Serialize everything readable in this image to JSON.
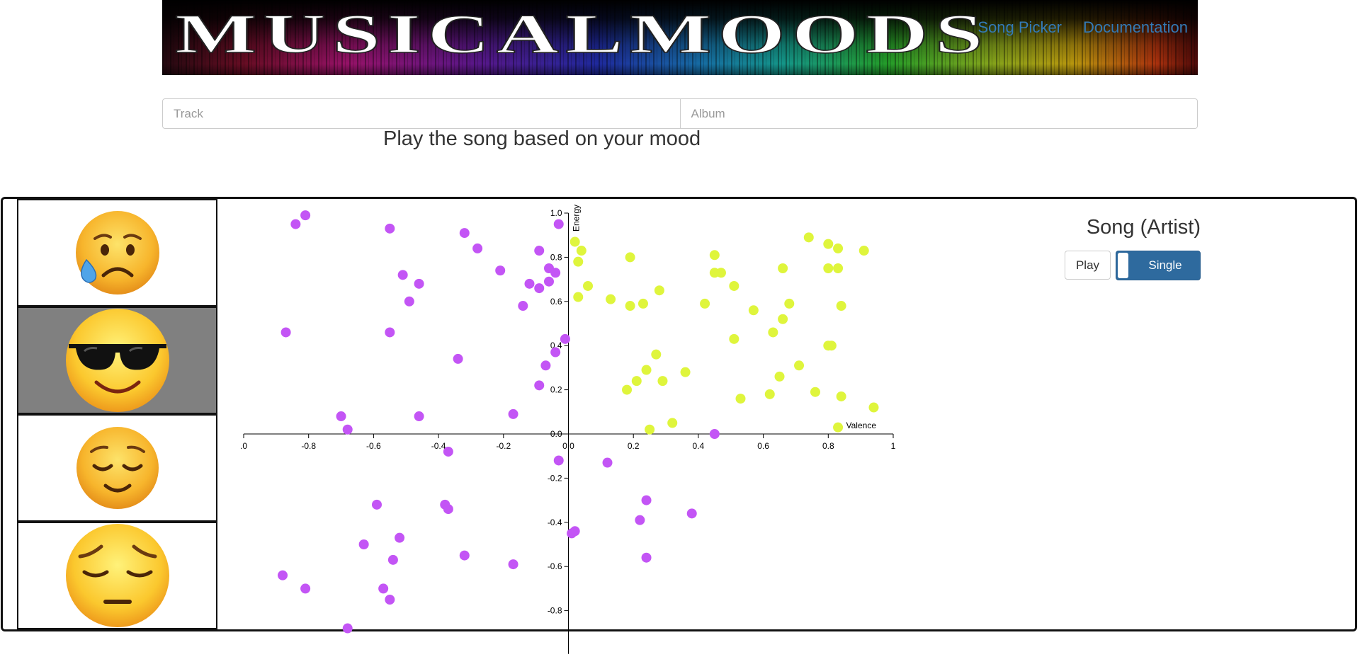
{
  "header": {
    "logo_text": "MusicalMoods",
    "nav": [
      {
        "label": "Song Picker"
      },
      {
        "label": "Documentation"
      }
    ]
  },
  "search": {
    "track_placeholder": "Track",
    "album_placeholder": "Album"
  },
  "subtitle": "Play the song based on your mood",
  "moods": [
    {
      "name": "sad-tear-face-icon",
      "selected": false
    },
    {
      "name": "sunglasses-face-icon",
      "selected": true
    },
    {
      "name": "relieved-face-icon",
      "selected": false
    },
    {
      "name": "pensive-face-icon",
      "selected": false
    }
  ],
  "player": {
    "song_title": "Song (Artist)",
    "play_label": "Play",
    "mode_label": "Single"
  },
  "colors": {
    "negative_points": "#c355f5",
    "positive_points": "#dff53c",
    "selected_mood_bg": "#808080",
    "link": "#337ab7",
    "toggle": "#2e6a9e"
  },
  "chart_data": {
    "type": "scatter",
    "xlabel": "Valence",
    "ylabel": "Energy",
    "xlim": [
      -1,
      1
    ],
    "ylim": [
      -0.9,
      1.0
    ],
    "x_ticks": [
      ".0",
      "-0.8",
      "-0.6",
      "-0.4",
      "-0.2",
      "0.0",
      "0.2",
      "0.4",
      "0.6",
      "0.8",
      "1"
    ],
    "y_ticks": [
      "1.0",
      "0.8",
      "0.6",
      "0.4",
      "0.2",
      "0.0",
      "-0.2",
      "-0.4",
      "-0.6",
      "-0.8"
    ],
    "series": [
      {
        "color": "#c355f5",
        "points": [
          [
            -0.81,
            0.99
          ],
          [
            -0.84,
            0.95
          ],
          [
            -0.55,
            0.93
          ],
          [
            -0.32,
            0.91
          ],
          [
            -0.03,
            0.95
          ],
          [
            -0.28,
            0.84
          ],
          [
            -0.09,
            0.83
          ],
          [
            -0.51,
            0.72
          ],
          [
            -0.46,
            0.68
          ],
          [
            -0.21,
            0.74
          ],
          [
            -0.06,
            0.75
          ],
          [
            -0.04,
            0.73
          ],
          [
            -0.12,
            0.68
          ],
          [
            -0.09,
            0.66
          ],
          [
            -0.06,
            0.69
          ],
          [
            -0.49,
            0.6
          ],
          [
            -0.14,
            0.58
          ],
          [
            -0.87,
            0.46
          ],
          [
            -0.55,
            0.46
          ],
          [
            -0.01,
            0.43
          ],
          [
            -0.34,
            0.34
          ],
          [
            -0.04,
            0.37
          ],
          [
            -0.07,
            0.31
          ],
          [
            -0.09,
            0.22
          ],
          [
            -0.17,
            0.09
          ],
          [
            -0.7,
            0.08
          ],
          [
            -0.46,
            0.08
          ],
          [
            -0.68,
            0.02
          ],
          [
            0.45,
            0.0
          ],
          [
            -0.37,
            -0.08
          ],
          [
            -0.03,
            -0.12
          ],
          [
            0.12,
            -0.13
          ],
          [
            -0.59,
            -0.32
          ],
          [
            -0.38,
            -0.32
          ],
          [
            -0.37,
            -0.34
          ],
          [
            0.24,
            -0.3
          ],
          [
            0.38,
            -0.36
          ],
          [
            0.22,
            -0.39
          ],
          [
            -0.52,
            -0.47
          ],
          [
            -0.63,
            -0.5
          ],
          [
            0.02,
            -0.44
          ],
          [
            0.01,
            -0.45
          ],
          [
            -0.54,
            -0.57
          ],
          [
            -0.32,
            -0.55
          ],
          [
            0.24,
            -0.56
          ],
          [
            -0.17,
            -0.59
          ],
          [
            -0.88,
            -0.64
          ],
          [
            -0.81,
            -0.7
          ],
          [
            -0.57,
            -0.7
          ],
          [
            -0.55,
            -0.75
          ],
          [
            -0.68,
            -0.88
          ]
        ]
      },
      {
        "color": "#dff53c",
        "points": [
          [
            0.02,
            0.87
          ],
          [
            0.04,
            0.83
          ],
          [
            0.03,
            0.78
          ],
          [
            0.19,
            0.8
          ],
          [
            0.45,
            0.81
          ],
          [
            0.74,
            0.89
          ],
          [
            0.8,
            0.86
          ],
          [
            0.83,
            0.84
          ],
          [
            0.91,
            0.83
          ],
          [
            0.45,
            0.73
          ],
          [
            0.47,
            0.73
          ],
          [
            0.66,
            0.75
          ],
          [
            0.8,
            0.75
          ],
          [
            0.83,
            0.75
          ],
          [
            0.06,
            0.67
          ],
          [
            0.03,
            0.62
          ],
          [
            0.13,
            0.61
          ],
          [
            0.19,
            0.58
          ],
          [
            0.23,
            0.59
          ],
          [
            0.28,
            0.65
          ],
          [
            0.42,
            0.59
          ],
          [
            0.51,
            0.67
          ],
          [
            0.57,
            0.56
          ],
          [
            0.68,
            0.59
          ],
          [
            0.84,
            0.58
          ],
          [
            0.66,
            0.52
          ],
          [
            0.63,
            0.46
          ],
          [
            0.51,
            0.43
          ],
          [
            0.81,
            0.4
          ],
          [
            0.8,
            0.4
          ],
          [
            0.27,
            0.36
          ],
          [
            0.24,
            0.29
          ],
          [
            0.21,
            0.24
          ],
          [
            0.29,
            0.24
          ],
          [
            0.36,
            0.28
          ],
          [
            0.71,
            0.31
          ],
          [
            0.65,
            0.26
          ],
          [
            0.18,
            0.2
          ],
          [
            0.76,
            0.19
          ],
          [
            0.62,
            0.18
          ],
          [
            0.53,
            0.16
          ],
          [
            0.84,
            0.17
          ],
          [
            0.94,
            0.12
          ],
          [
            0.32,
            0.05
          ],
          [
            0.25,
            0.02
          ],
          [
            0.83,
            0.03
          ]
        ]
      }
    ]
  }
}
